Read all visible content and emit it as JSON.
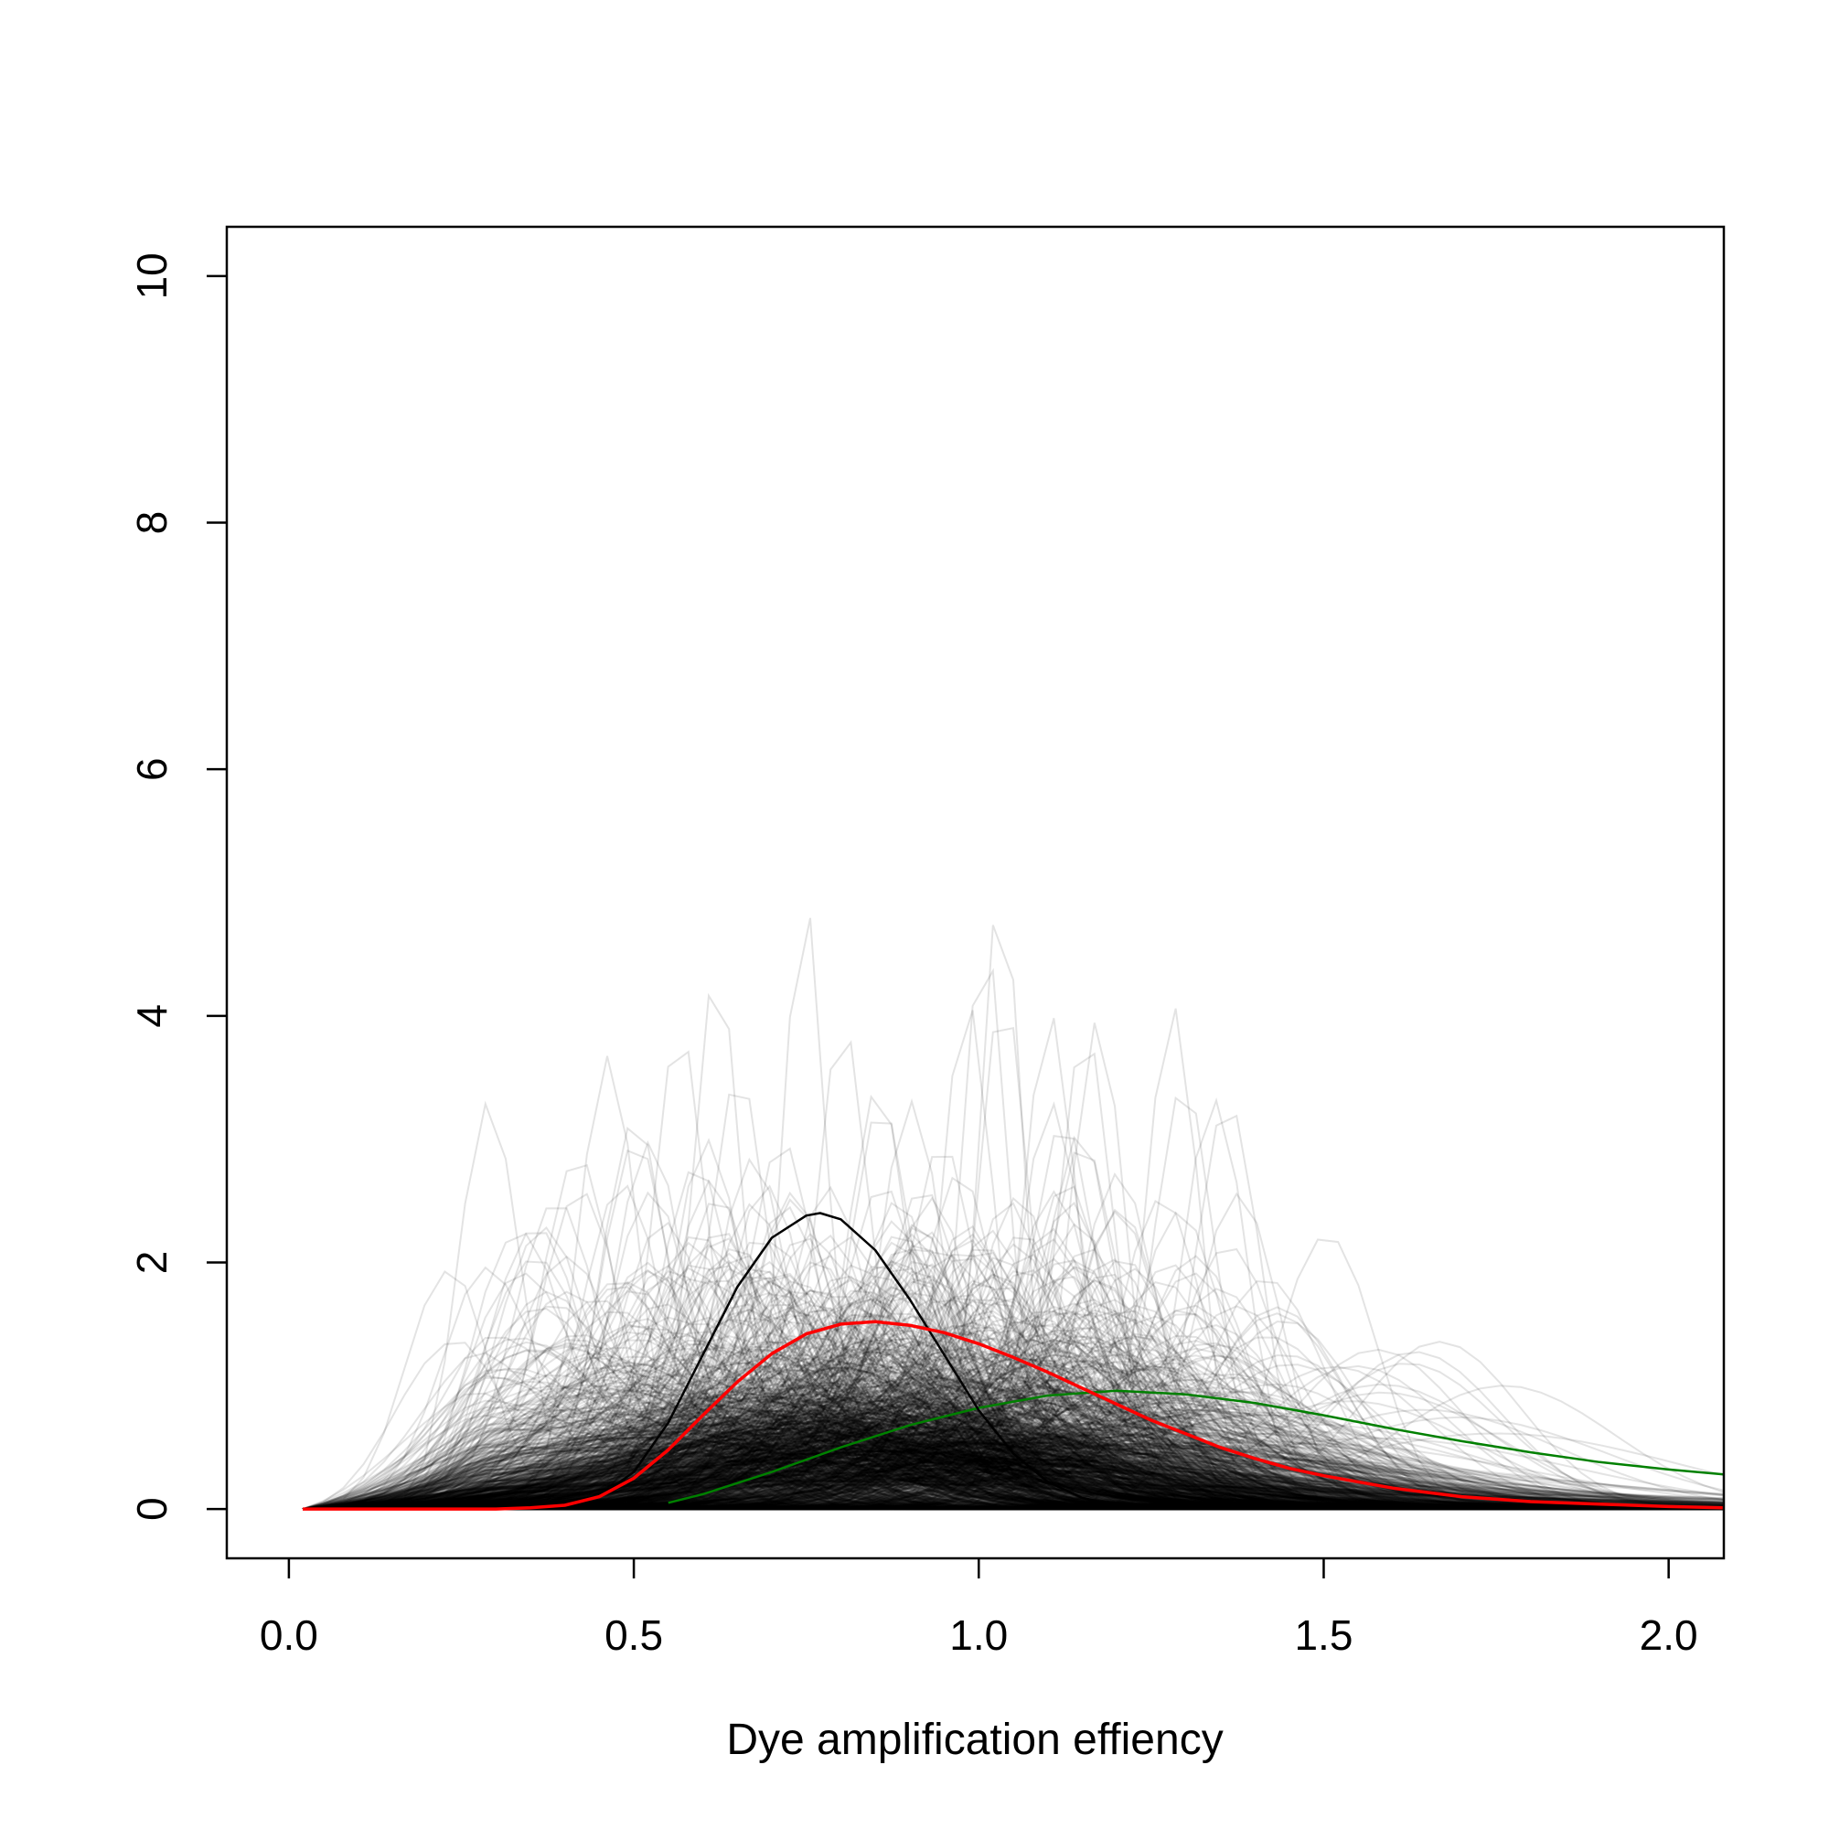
{
  "chart_data": {
    "type": "line",
    "title": "",
    "xlabel": "Dye amplification effiency",
    "ylabel": "",
    "xlim": [
      -0.09,
      2.08
    ],
    "ylim": [
      -0.4,
      10.4
    ],
    "x_ticks": [
      {
        "value": 0.0,
        "label": "0.0"
      },
      {
        "value": 0.5,
        "label": "0.5"
      },
      {
        "value": 1.0,
        "label": "1.0"
      },
      {
        "value": 1.5,
        "label": "1.5"
      },
      {
        "value": 2.0,
        "label": "2.0"
      }
    ],
    "y_ticks": [
      {
        "value": 0,
        "label": "0"
      },
      {
        "value": 2,
        "label": "2"
      },
      {
        "value": 4,
        "label": "4"
      },
      {
        "value": 6,
        "label": "6"
      },
      {
        "value": 8,
        "label": "8"
      },
      {
        "value": 10,
        "label": "10"
      }
    ],
    "grid": false,
    "legend": "none",
    "background_density_curves": {
      "description_of_rendering": "many semi-transparent grey density curves",
      "color": "#000000",
      "approx_count": 1500
    },
    "series": [
      {
        "color": "#ff0000",
        "x": [
          0.02,
          0.2,
          0.3,
          0.35,
          0.4,
          0.45,
          0.5,
          0.55,
          0.6,
          0.65,
          0.7,
          0.75,
          0.8,
          0.85,
          0.9,
          0.95,
          1.0,
          1.05,
          1.1,
          1.15,
          1.2,
          1.25,
          1.3,
          1.35,
          1.4,
          1.45,
          1.5,
          1.6,
          1.7,
          1.8,
          1.9,
          2.0,
          2.08
        ],
        "y": [
          0.0,
          0.0,
          0.0,
          0.01,
          0.03,
          0.1,
          0.25,
          0.48,
          0.76,
          1.03,
          1.26,
          1.42,
          1.5,
          1.52,
          1.49,
          1.43,
          1.34,
          1.23,
          1.11,
          0.98,
          0.85,
          0.72,
          0.61,
          0.5,
          0.41,
          0.33,
          0.27,
          0.17,
          0.1,
          0.06,
          0.04,
          0.02,
          0.01
        ]
      },
      {
        "color": "#000000",
        "x": [
          0.3,
          0.45,
          0.5,
          0.55,
          0.6,
          0.65,
          0.7,
          0.75,
          0.77,
          0.8,
          0.85,
          0.9,
          0.95,
          1.0,
          1.05,
          1.1,
          1.15,
          1.2,
          1.3
        ],
        "y": [
          0.0,
          0.1,
          0.3,
          0.7,
          1.25,
          1.8,
          2.2,
          2.38,
          2.4,
          2.35,
          2.1,
          1.7,
          1.25,
          0.8,
          0.45,
          0.22,
          0.09,
          0.03,
          0.0
        ]
      },
      {
        "color": "#008000",
        "x": [
          0.55,
          0.6,
          0.7,
          0.8,
          0.9,
          1.0,
          1.1,
          1.2,
          1.3,
          1.4,
          1.5,
          1.6,
          1.7,
          1.8,
          1.9,
          2.0,
          2.08
        ],
        "y": [
          0.05,
          0.12,
          0.3,
          0.5,
          0.68,
          0.82,
          0.92,
          0.96,
          0.93,
          0.86,
          0.76,
          0.65,
          0.55,
          0.46,
          0.38,
          0.32,
          0.28
        ]
      }
    ]
  }
}
